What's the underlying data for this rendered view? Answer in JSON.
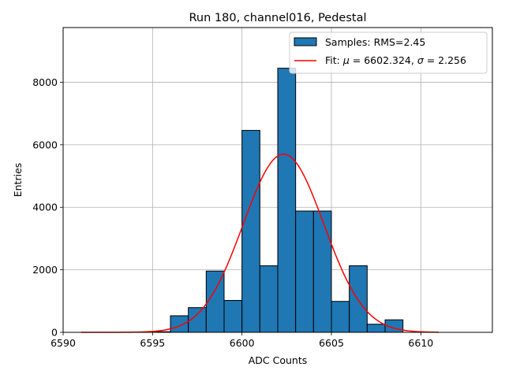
{
  "chart_data": {
    "type": "bar",
    "title": "Run 180, channel016, Pedestal",
    "xlabel": "ADC Counts",
    "ylabel": "Entries",
    "xlim": [
      6590,
      6614
    ],
    "ylim": [
      0,
      9750
    ],
    "xticks": [
      6590,
      6595,
      6600,
      6605,
      6610
    ],
    "yticks": [
      0,
      2000,
      4000,
      6000,
      8000
    ],
    "grid": true,
    "bar_color": "#1f77b4",
    "bar_edge_color": "#000000",
    "fit_color": "#ff0000",
    "bins": [
      {
        "left": 6595,
        "right": 6596,
        "value": 20
      },
      {
        "left": 6596,
        "right": 6597,
        "value": 530
      },
      {
        "left": 6597,
        "right": 6598,
        "value": 790
      },
      {
        "left": 6598,
        "right": 6599,
        "value": 1960
      },
      {
        "left": 6599,
        "right": 6600,
        "value": 1020
      },
      {
        "left": 6600,
        "right": 6601,
        "value": 6460
      },
      {
        "left": 6601,
        "right": 6602,
        "value": 2130
      },
      {
        "left": 6602,
        "right": 6603,
        "value": 8450
      },
      {
        "left": 6603,
        "right": 6604,
        "value": 3880
      },
      {
        "left": 6604,
        "right": 6605,
        "value": 3880
      },
      {
        "left": 6605,
        "right": 6606,
        "value": 990
      },
      {
        "left": 6606,
        "right": 6607,
        "value": 2130
      },
      {
        "left": 6607,
        "right": 6608,
        "value": 260
      },
      {
        "left": 6608,
        "right": 6609,
        "value": 400
      }
    ],
    "fit": {
      "mu": 6602.324,
      "sigma": 2.256,
      "amplitude": 5700,
      "x_range": [
        6591,
        6611
      ]
    },
    "legend": {
      "position": "top-right",
      "entries": {
        "samples": "Samples: RMS=2.45",
        "fit_prefix": "Fit: ",
        "mu_symbol": "μ",
        "mu_text": " = 6602.324, ",
        "sigma_symbol": "σ",
        "sigma_text": " = 2.256"
      }
    }
  }
}
